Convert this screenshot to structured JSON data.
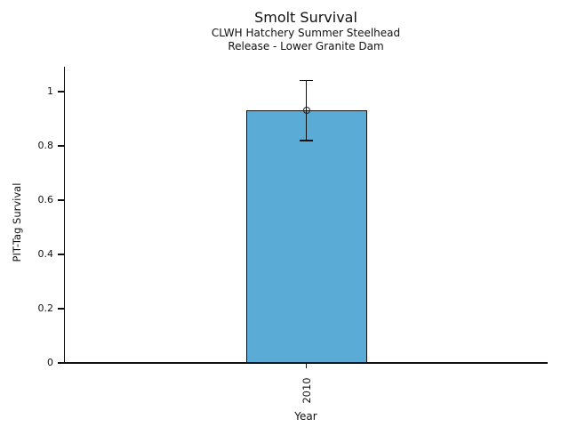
{
  "title": "Smolt Survival",
  "subtitle_line1": "CLWH Hatchery Summer Steelhead",
  "subtitle_line2": "Release - Lower Granite Dam",
  "chart_data": {
    "type": "bar",
    "title": "Smolt Survival",
    "subtitle": [
      "CLWH Hatchery Summer Steelhead",
      "Release - Lower Granite Dam"
    ],
    "xlabel": "Year",
    "ylabel": "PIT-Tag Survival",
    "categories": [
      "2010"
    ],
    "values": [
      0.93
    ],
    "error_bars": [
      {
        "low": 0.82,
        "high": 1.04
      }
    ],
    "marker": "open-circle",
    "ylim": [
      0,
      1.09
    ],
    "yticks": [
      0,
      0.2,
      0.4,
      0.6,
      0.8,
      1
    ],
    "ytick_labels": [
      "0",
      "0.2",
      "0.4",
      "0.6",
      "0.8",
      "1"
    ],
    "bar_color": "#5aabd6",
    "bar_edge_color": "#111111",
    "axis_color": "#111111",
    "grid": false,
    "legend": "none"
  }
}
